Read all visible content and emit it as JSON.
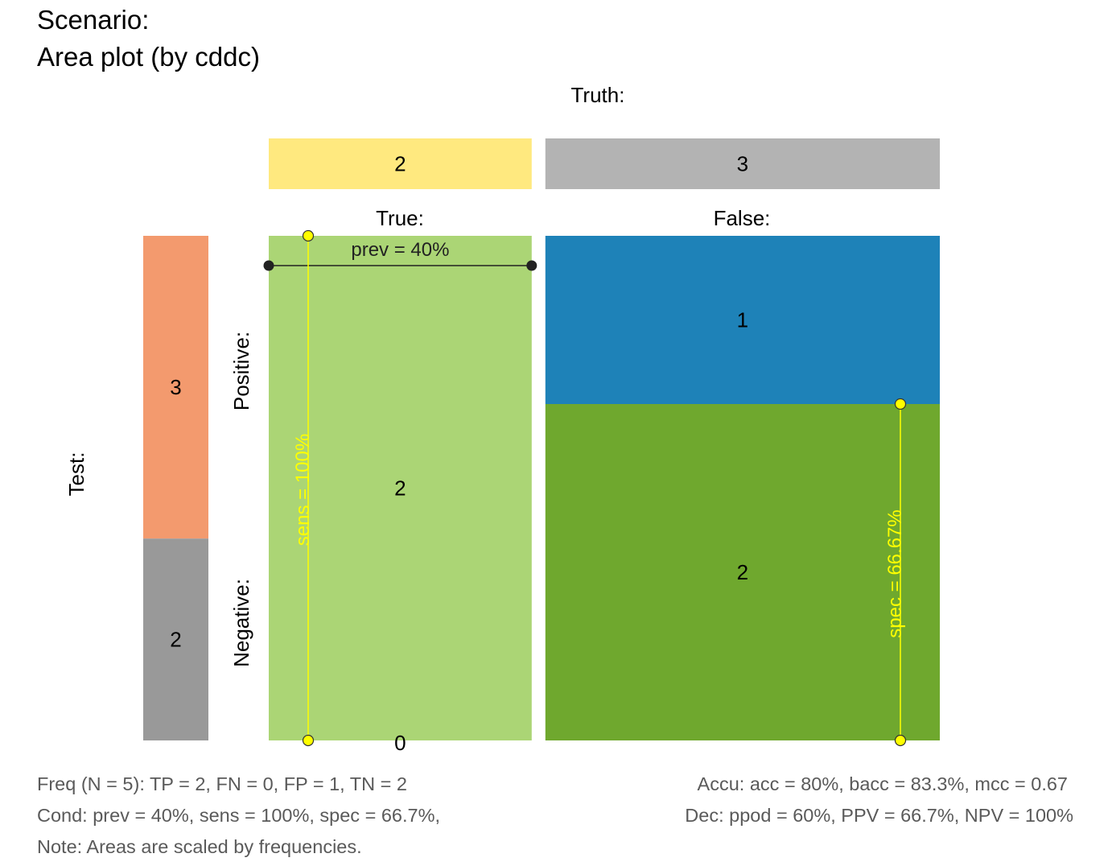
{
  "title": {
    "line1": "Scenario:",
    "line2": "Area plot (by cddc)"
  },
  "labels": {
    "truth": "Truth:",
    "true": "True:",
    "false": "False:",
    "test": "Test:",
    "positive": "Positive:",
    "negative": "Negative:"
  },
  "chart_data": {
    "type": "area",
    "N": 5,
    "truth_bar": {
      "cond_true": 2,
      "cond_false": 3
    },
    "test_bar": {
      "dec_pos": 3,
      "dec_neg": 2
    },
    "cells": {
      "TP": 2,
      "FN": 0,
      "FP": 1,
      "TN": 2
    },
    "cell_labels": {
      "TP": "2",
      "FN": "0",
      "FP": "1",
      "TN": "2"
    },
    "truth_bar_labels": {
      "cond_true": "2",
      "cond_false": "3"
    },
    "test_bar_labels": {
      "dec_pos": "3",
      "dec_neg": "2"
    },
    "metrics": {
      "prev": 0.4,
      "sens": 1.0,
      "spec": 0.6667,
      "prev_label": "prev = 40%",
      "sens_label": "sens = 100%",
      "spec_label": "spec = 66.67%"
    },
    "colors": {
      "cond_true": "#FFE97F",
      "cond_false": "#B3B3B3",
      "dec_pos": "#F39A6E",
      "dec_neg": "#999999",
      "TP": "#ABD575",
      "FN": "#ABD575",
      "FP": "#1E82B8",
      "TN": "#6FA82E",
      "marker": "#FFFF00"
    }
  },
  "footer": {
    "freq": "Freq (N = 5):  TP = 2, FN = 0, FP = 1, TN = 2",
    "cond": "Cond:  prev = 40%, sens = 100%, spec = 66.7%,",
    "note": "Note:  Areas are scaled by frequencies.",
    "accu": "Accu:  acc = 80%, bacc = 83.3%, mcc = 0.67",
    "dec": "Dec:  ppod = 60%, PPV = 66.7%, NPV = 100%"
  }
}
